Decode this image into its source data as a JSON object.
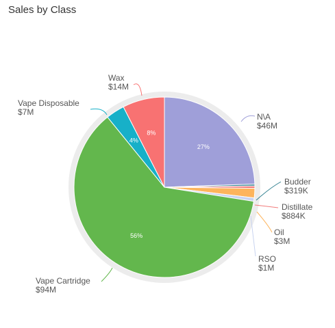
{
  "title": "Sales by Class",
  "chart_data": {
    "type": "pie",
    "title": "Sales by Class",
    "slices": [
      {
        "name": "N\\A",
        "value_label": "$46M",
        "value": 46000000,
        "color": "#9f9fd9",
        "pct_label": "27%"
      },
      {
        "name": "Budder",
        "value_label": "$319K",
        "value": 319000,
        "color": "#2f7f8f",
        "pct_label": ""
      },
      {
        "name": "Distillate",
        "value_label": "$884K",
        "value": 884000,
        "color": "#f27a7a",
        "pct_label": ""
      },
      {
        "name": "Oil",
        "value_label": "$3M",
        "value": 3000000,
        "color": "#fdb45c",
        "pct_label": ""
      },
      {
        "name": "RSO",
        "value_label": "$1M",
        "value": 1000000,
        "color": "#c8d3f0",
        "pct_label": ""
      },
      {
        "name": "Vape Cartridge",
        "value_label": "$94M",
        "value": 94000000,
        "color": "#63b74d",
        "pct_label": "56%"
      },
      {
        "name": "Vape Disposable",
        "value_label": "$7M",
        "value": 7000000,
        "color": "#17b0c8",
        "pct_label": "4%"
      },
      {
        "name": "Wax",
        "value_label": "$14M",
        "value": 14000000,
        "color": "#f87272",
        "pct_label": "8%"
      }
    ]
  }
}
